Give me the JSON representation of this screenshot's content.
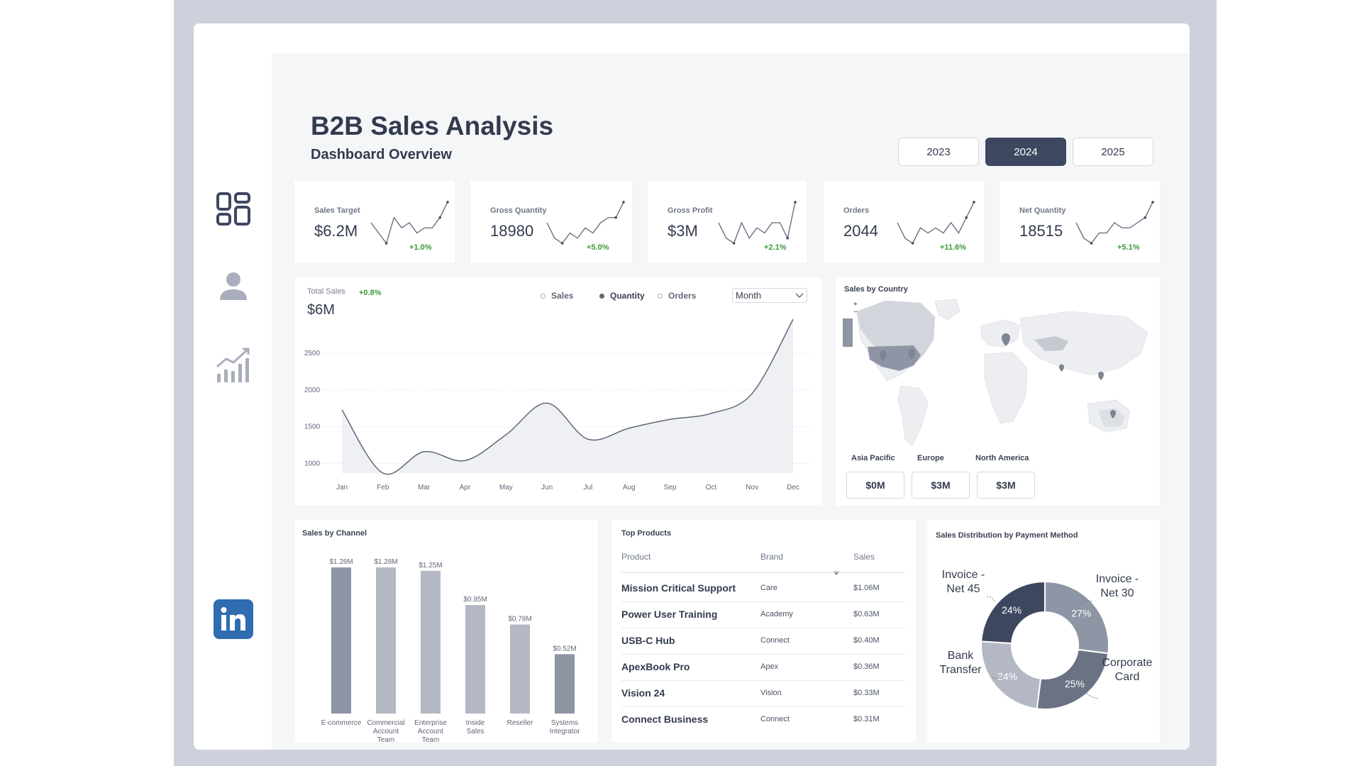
{
  "header": {
    "title": "B2B Sales Analysis",
    "subtitle": "Dashboard Overview"
  },
  "years": [
    {
      "label": "2023",
      "active": false
    },
    {
      "label": "2024",
      "active": true
    },
    {
      "label": "2025",
      "active": false
    }
  ],
  "sidebar": {
    "icons": [
      "dashboard-icon",
      "user-icon",
      "analytics-icon",
      "linkedin-icon"
    ]
  },
  "kpis": [
    {
      "label": "Sales Target",
      "value": "$6.2M",
      "delta": "+1.0%"
    },
    {
      "label": "Gross Quantity",
      "value": "18980",
      "delta": "+5.0%"
    },
    {
      "label": "Gross Profit",
      "value": "$3M",
      "delta": "+2.1%"
    },
    {
      "label": "Orders",
      "value": "2044",
      "delta": "+11.6%"
    },
    {
      "label": "Net Quantity",
      "value": "18515",
      "delta": "+5.1%"
    }
  ],
  "total_sales": {
    "label": "Total Sales",
    "delta": "+0.8%",
    "value": "$6M",
    "legend": [
      "Sales",
      "Quantity",
      "Orders"
    ],
    "dropdown": "Month"
  },
  "sales_by_country": {
    "title": "Sales by Country",
    "regions": [
      {
        "name": "Asia Pacific",
        "value": "$0M"
      },
      {
        "name": "Europe",
        "value": "$3M"
      },
      {
        "name": "North America",
        "value": "$3M"
      }
    ]
  },
  "sales_by_channel": {
    "title": "Sales by Channel"
  },
  "top_products": {
    "title": "Top Products",
    "columns": [
      "Product",
      "Brand",
      "Sales"
    ],
    "rows": [
      {
        "product": "Mission Critical Support",
        "brand": "Care",
        "sales": "$1.06M"
      },
      {
        "product": "Power User Training",
        "brand": "Academy",
        "sales": "$0.63M"
      },
      {
        "product": "USB-C Hub",
        "brand": "Connect",
        "sales": "$0.40M"
      },
      {
        "product": "ApexBook Pro",
        "brand": "Apex",
        "sales": "$0.36M"
      },
      {
        "product": "Vision 24",
        "brand": "Vision",
        "sales": "$0.33M"
      },
      {
        "product": "Connect Business",
        "brand": "Connect",
        "sales": "$0.31M"
      }
    ]
  },
  "payment": {
    "title": "Sales Distribution by Payment Method"
  },
  "chart_data": [
    {
      "id": "total-sales",
      "type": "area",
      "categories": [
        "Jan",
        "Feb",
        "Mar",
        "Apr",
        "May",
        "Jun",
        "Jul",
        "Aug",
        "Sep",
        "Oct",
        "Nov",
        "Dec"
      ],
      "series": [
        {
          "name": "Quantity",
          "values": [
            1730,
            870,
            1160,
            1040,
            1390,
            1820,
            1330,
            1480,
            1600,
            1680,
            1950,
            2960
          ]
        }
      ],
      "yticks": [
        1000,
        1500,
        2000,
        2500
      ],
      "ylim": [
        870,
        3000
      ]
    },
    {
      "id": "sales-by-channel",
      "type": "bar",
      "categories": [
        "E-commerce",
        "Commercial Account Team",
        "Enterprise Account Team",
        "Inside Sales",
        "Reseller",
        "Systems Integrator"
      ],
      "values": [
        1.28,
        1.28,
        1.25,
        0.95,
        0.78,
        0.52
      ],
      "labels": [
        "$1.28M",
        "$1.28M",
        "$1.25M",
        "$0.95M",
        "$0.78M",
        "$0.52M"
      ],
      "colors": [
        "#8e95a5",
        "#b3b8c4",
        "#b3b8c4",
        "#b3b8c4",
        "#b3b8c4",
        "#8e95a5"
      ]
    },
    {
      "id": "payment-method",
      "type": "pie",
      "labels": [
        "Invoice - Net 30",
        "Corporate Card",
        "Bank Transfer",
        "Invoice - Net 45"
      ],
      "values": [
        27,
        25,
        24,
        24
      ],
      "pct_labels": [
        "27%",
        "25%",
        "24%",
        "24%"
      ],
      "colors": [
        "#8e95a5",
        "#6a7284",
        "#b3b8c4",
        "#3d4860"
      ]
    },
    {
      "id": "kpi-sparklines",
      "type": "line",
      "series": [
        {
          "values": [
            5,
            3,
            1,
            6,
            4,
            5,
            3,
            4,
            4,
            6,
            9
          ]
        },
        {
          "values": [
            5,
            2,
            1,
            3,
            2,
            4,
            3,
            5,
            6,
            6,
            9
          ]
        },
        {
          "values": [
            5,
            2,
            1,
            5,
            2,
            4,
            3,
            5,
            5,
            2,
            9
          ]
        },
        {
          "values": [
            5,
            2,
            1,
            4,
            3,
            4,
            3,
            5,
            3,
            6,
            9
          ]
        },
        {
          "values": [
            5,
            2,
            1,
            3,
            3,
            5,
            4,
            4,
            5,
            6,
            9
          ]
        }
      ]
    }
  ]
}
